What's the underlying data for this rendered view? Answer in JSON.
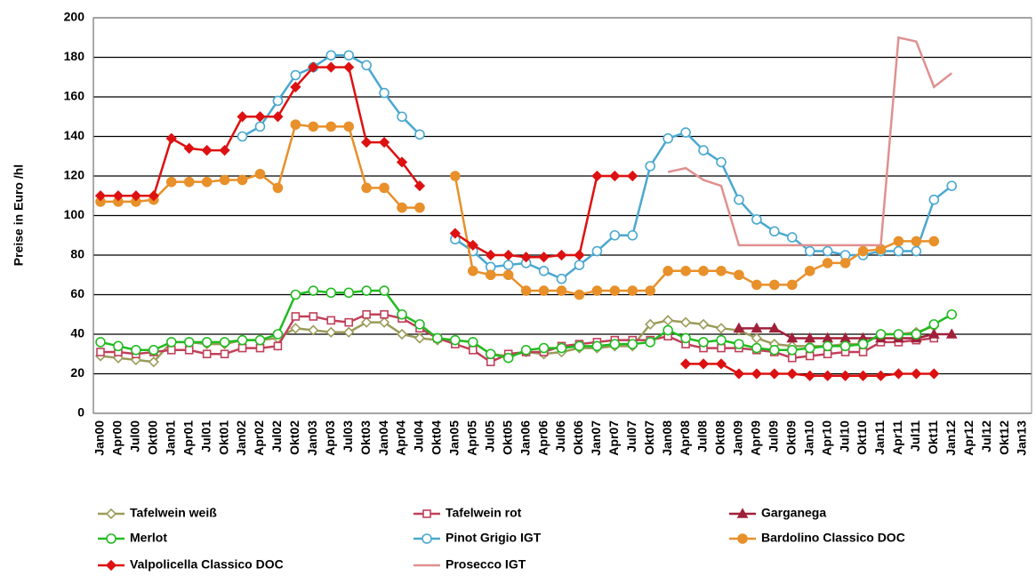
{
  "chart_data": {
    "type": "line",
    "ylabel": "Preise in Euro /hl",
    "categories": [
      "Jan00",
      "Apr00",
      "Jul00",
      "Okt00",
      "Jan01",
      "Apr01",
      "Jul01",
      "Okt01",
      "Jan02",
      "Apr02",
      "Jul02",
      "Okt02",
      "Jan03",
      "Apr03",
      "Jul03",
      "Okt03",
      "Jan04",
      "Apr04",
      "Jul04",
      "Okt04",
      "Jan05",
      "Apr05",
      "Jul05",
      "Okt05",
      "Jan06",
      "Apr06",
      "Jul06",
      "Okt06",
      "Jan07",
      "Apr07",
      "Jul07",
      "Okt07",
      "Jan08",
      "Apr08",
      "Jul08",
      "Okt08",
      "Jan09",
      "Apr09",
      "Jul09",
      "Okt09",
      "Jan10",
      "Apr10",
      "Jul10",
      "Okt10",
      "Jan11",
      "Apr11",
      "Jul11",
      "Okt11",
      "Jan12",
      "Apr12",
      "Jul12",
      "Okt12",
      "Jan13"
    ],
    "ylim": [
      0,
      200
    ],
    "yticks": [
      0,
      20,
      40,
      60,
      80,
      100,
      120,
      140,
      160,
      180,
      200
    ],
    "grid": true,
    "series": [
      {
        "name": "Tafelwein weiß",
        "color": "#9b9b5a",
        "marker": "diamond-open",
        "values": [
          29,
          28,
          27,
          26,
          36,
          36,
          35,
          35,
          37,
          37,
          38,
          43,
          42,
          41,
          41,
          46,
          46,
          40,
          38,
          37,
          37,
          36,
          30,
          29,
          31,
          30,
          31,
          33,
          33,
          34,
          34,
          45,
          47,
          46,
          45,
          43,
          42,
          38,
          35,
          34,
          34,
          34,
          35,
          35,
          40,
          40,
          41,
          44,
          null,
          null,
          null,
          null,
          null
        ]
      },
      {
        "name": "Tafelwein rot",
        "color": "#c0405a",
        "marker": "square-open",
        "values": [
          31,
          31,
          30,
          31,
          32,
          32,
          30,
          30,
          33,
          33,
          34,
          49,
          49,
          47,
          46,
          50,
          50,
          48,
          43,
          38,
          35,
          32,
          26,
          30,
          31,
          31,
          34,
          35,
          36,
          37,
          37,
          37,
          39,
          35,
          33,
          33,
          33,
          32,
          31,
          28,
          29,
          30,
          31,
          31,
          36,
          36,
          37,
          38,
          null,
          null,
          null,
          null,
          null
        ]
      },
      {
        "name": "Garganega",
        "color": "#a0203a",
        "marker": "triangle",
        "values": [
          null,
          null,
          null,
          null,
          null,
          null,
          null,
          null,
          null,
          null,
          null,
          null,
          null,
          null,
          null,
          null,
          null,
          null,
          null,
          null,
          null,
          null,
          null,
          null,
          null,
          null,
          null,
          null,
          null,
          null,
          null,
          null,
          null,
          null,
          null,
          null,
          43,
          43,
          43,
          38,
          38,
          38,
          38,
          38,
          38,
          38,
          38,
          40,
          40,
          null,
          null,
          null,
          null
        ]
      },
      {
        "name": "Merlot",
        "color": "#22bb22",
        "marker": "circle-open",
        "values": [
          36,
          34,
          32,
          32,
          36,
          36,
          36,
          36,
          37,
          37,
          40,
          60,
          62,
          61,
          61,
          62,
          62,
          50,
          45,
          38,
          37,
          36,
          30,
          28,
          32,
          33,
          33,
          34,
          34,
          35,
          35,
          36,
          42,
          38,
          36,
          37,
          35,
          33,
          32,
          32,
          33,
          34,
          34,
          35,
          40,
          40,
          40,
          45,
          50,
          null,
          null,
          null,
          null
        ]
      },
      {
        "name": "Pinot Grigio IGT",
        "color": "#4aa8d0",
        "marker": "circle-open",
        "values": [
          null,
          null,
          null,
          null,
          null,
          null,
          null,
          null,
          140,
          145,
          158,
          171,
          175,
          181,
          181,
          176,
          162,
          150,
          141,
          null,
          88,
          82,
          74,
          75,
          76,
          72,
          68,
          75,
          82,
          90,
          90,
          125,
          139,
          142,
          133,
          127,
          108,
          98,
          92,
          89,
          82,
          82,
          80,
          80,
          82,
          82,
          82,
          108,
          115,
          null,
          null,
          null,
          null
        ]
      },
      {
        "name": "Bardolino Classico DOC",
        "color": "#e8902a",
        "marker": "circle",
        "values": [
          107,
          107,
          107,
          108,
          117,
          117,
          117,
          118,
          118,
          121,
          114,
          146,
          145,
          145,
          145,
          114,
          114,
          104,
          104,
          null,
          120,
          72,
          70,
          70,
          62,
          62,
          62,
          60,
          62,
          62,
          62,
          62,
          72,
          72,
          72,
          72,
          70,
          65,
          65,
          65,
          72,
          76,
          76,
          82,
          83,
          87,
          87,
          87,
          null,
          null,
          null,
          null,
          null
        ]
      },
      {
        "name": "Valpolicella Classico DOC",
        "color": "#dd1111",
        "marker": "diamond",
        "values": [
          110,
          110,
          110,
          110,
          139,
          134,
          133,
          133,
          150,
          150,
          150,
          165,
          175,
          175,
          175,
          137,
          137,
          127,
          115,
          null,
          91,
          85,
          80,
          80,
          79,
          79,
          80,
          80,
          120,
          120,
          120,
          null,
          null,
          25,
          25,
          25,
          20,
          20,
          20,
          20,
          19,
          19,
          19,
          19,
          19,
          20,
          20,
          20,
          null,
          null,
          null,
          null,
          null
        ]
      },
      {
        "name": "Prosecco IGT",
        "color": "#e09090",
        "marker": "none",
        "values": [
          null,
          null,
          null,
          null,
          null,
          null,
          null,
          null,
          null,
          null,
          null,
          null,
          null,
          null,
          null,
          null,
          null,
          null,
          null,
          null,
          null,
          null,
          null,
          null,
          null,
          null,
          null,
          null,
          null,
          null,
          null,
          null,
          122,
          124,
          118,
          115,
          85,
          85,
          85,
          85,
          85,
          85,
          85,
          85,
          85,
          190,
          188,
          165,
          172,
          null,
          null,
          null,
          null
        ]
      }
    ]
  }
}
